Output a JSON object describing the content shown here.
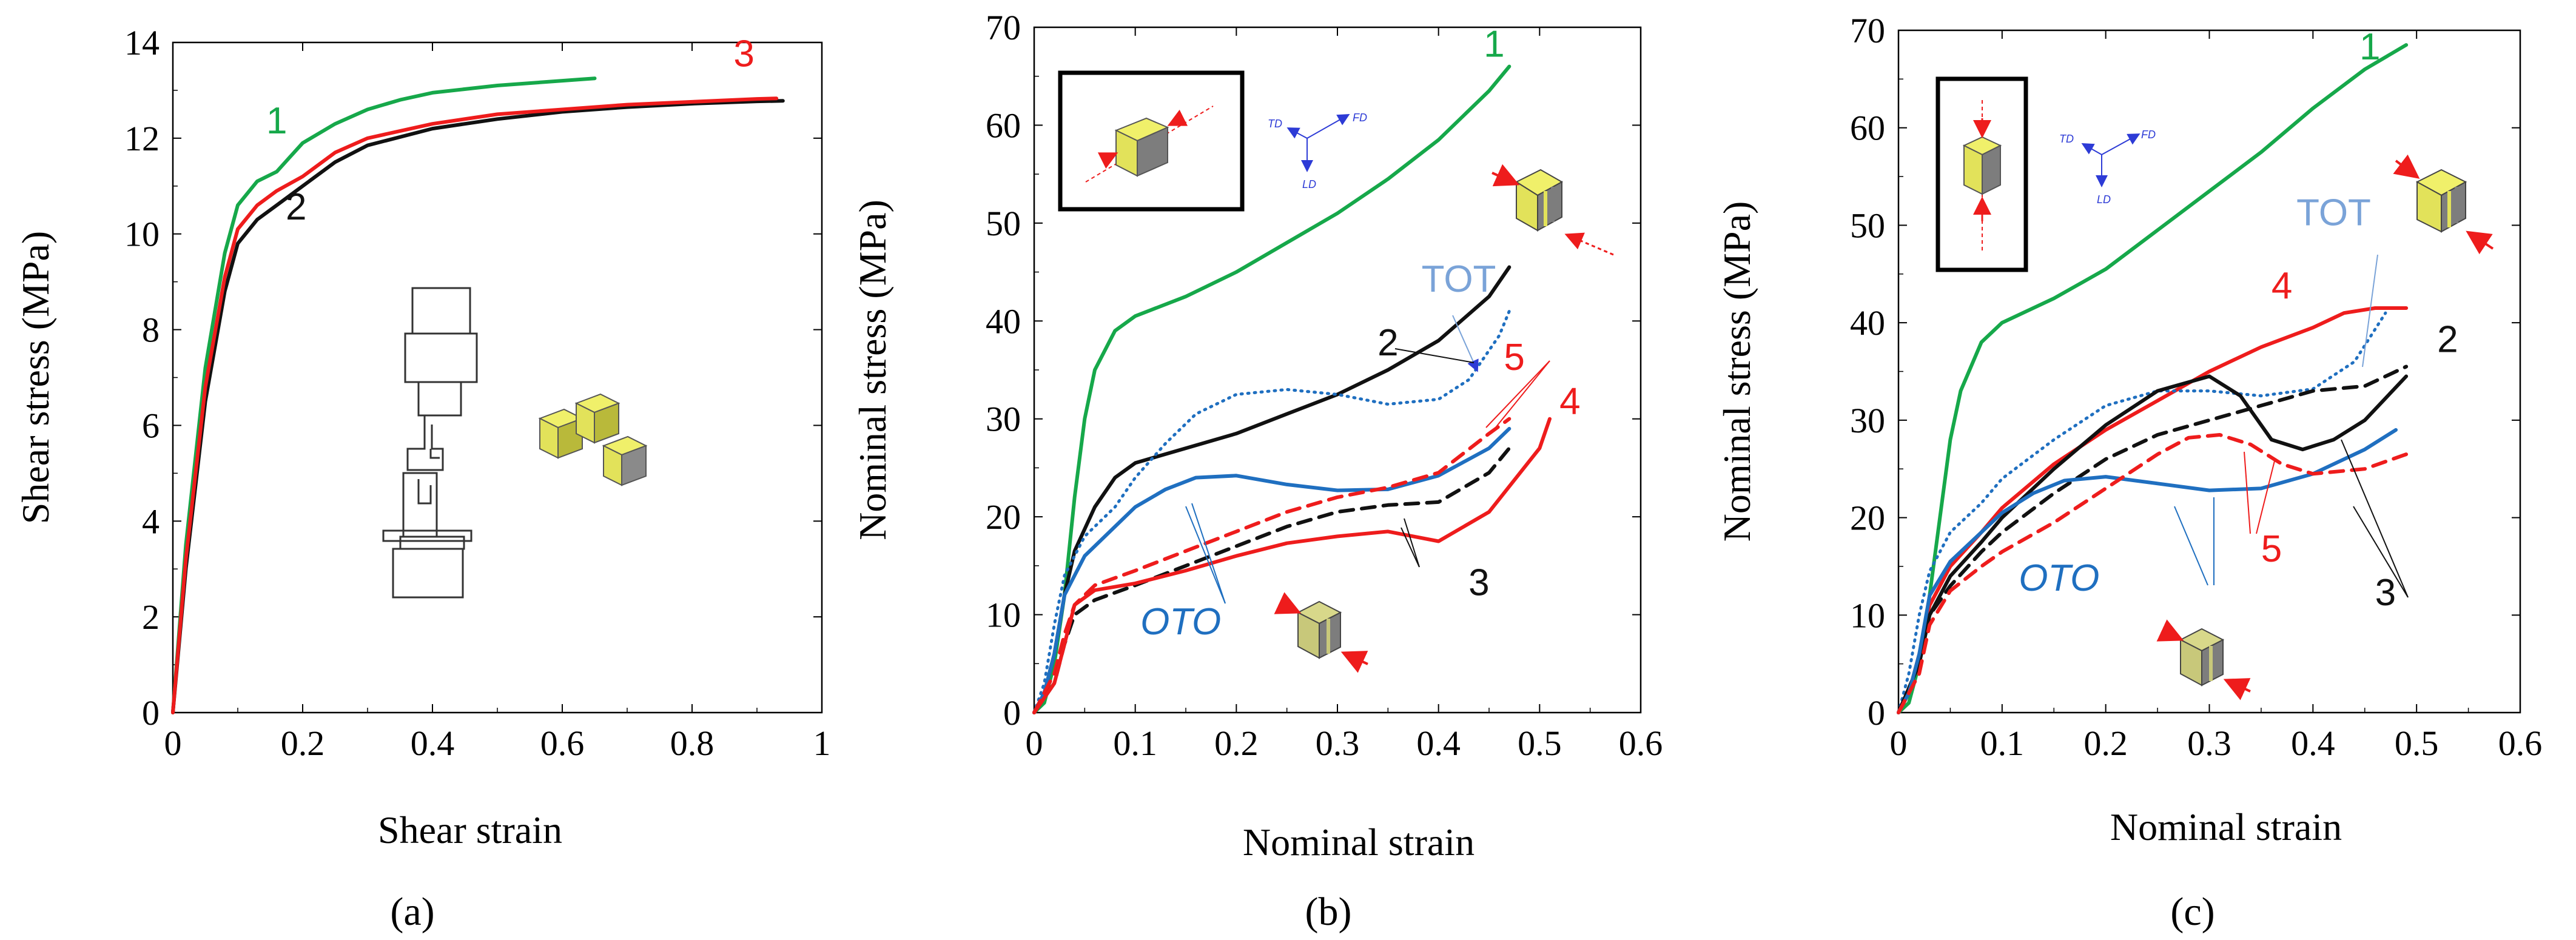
{
  "colors": {
    "green": "#16a84a",
    "black": "#111111",
    "red": "#ee1c1c",
    "blue": "#1f6fc0",
    "lightblue": "#7aa3d8",
    "cube_yellow": "#e2e25a",
    "cube_yellow_dark": "#b9b93a",
    "cube_gray": "#7d7d7d"
  },
  "chart_data": [
    {
      "type": "line",
      "panel": "a",
      "caption": "(a)",
      "xlabel": "Shear strain",
      "ylabel": "Shear stress (MPa)",
      "xlim": [
        0,
        1
      ],
      "ylim": [
        0,
        14
      ],
      "xticks": [
        0,
        0.2,
        0.4,
        0.6,
        0.8,
        1
      ],
      "xtick_labels": [
        "0",
        "0.2",
        "0.4",
        "0.6",
        "0.8",
        "1"
      ],
      "yticks": [
        0,
        2,
        4,
        6,
        8,
        10,
        12,
        14
      ],
      "ytick_labels": [
        "0",
        "2",
        "4",
        "6",
        "8",
        "10",
        "12",
        "14"
      ],
      "series": [
        {
          "name": "1",
          "color": "green",
          "dash": "solid",
          "x": [
            0,
            0.02,
            0.05,
            0.08,
            0.1,
            0.13,
            0.16,
            0.18,
            0.2,
            0.25,
            0.3,
            0.35,
            0.4,
            0.5,
            0.6,
            0.65
          ],
          "y": [
            0,
            3.5,
            7.2,
            9.6,
            10.6,
            11.1,
            11.3,
            11.6,
            11.9,
            12.3,
            12.6,
            12.8,
            12.95,
            13.1,
            13.2,
            13.25
          ]
        },
        {
          "name": "2",
          "color": "black",
          "dash": "solid",
          "x": [
            0,
            0.02,
            0.05,
            0.08,
            0.1,
            0.13,
            0.16,
            0.2,
            0.25,
            0.3,
            0.4,
            0.5,
            0.6,
            0.7,
            0.8,
            0.9,
            0.94
          ],
          "y": [
            0,
            3.0,
            6.5,
            8.8,
            9.8,
            10.3,
            10.6,
            11.0,
            11.5,
            11.85,
            12.2,
            12.4,
            12.55,
            12.65,
            12.72,
            12.77,
            12.78
          ]
        },
        {
          "name": "3",
          "color": "red",
          "dash": "solid",
          "x": [
            0,
            0.02,
            0.05,
            0.08,
            0.1,
            0.13,
            0.16,
            0.2,
            0.25,
            0.3,
            0.4,
            0.5,
            0.6,
            0.7,
            0.8,
            0.9,
            0.93
          ],
          "y": [
            0,
            3.2,
            6.8,
            9.1,
            10.1,
            10.6,
            10.9,
            11.2,
            11.7,
            12.0,
            12.3,
            12.5,
            12.6,
            12.7,
            12.76,
            12.82,
            12.83
          ]
        }
      ],
      "labels": [
        {
          "text": "1",
          "color": "green",
          "x": 0.16,
          "y": 12.1
        },
        {
          "text": "2",
          "color": "black",
          "x": 0.19,
          "y": 10.3
        },
        {
          "text": "3",
          "color": "red",
          "x": 0.88,
          "y": 13.5
        }
      ]
    },
    {
      "type": "line",
      "panel": "b",
      "caption": "(b)",
      "xlabel": "Nominal strain",
      "ylabel": "Nominal stress (MPa)",
      "xlim": [
        0,
        0.6
      ],
      "ylim": [
        0,
        70
      ],
      "xticks": [
        0,
        0.1,
        0.2,
        0.3,
        0.4,
        0.5,
        0.6
      ],
      "xtick_labels": [
        "0",
        "0.1",
        "0.2",
        "0.3",
        "0.4",
        "0.5",
        "0.6"
      ],
      "yticks": [
        0,
        10,
        20,
        30,
        40,
        50,
        60,
        70
      ],
      "ytick_labels": [
        "0",
        "10",
        "20",
        "30",
        "40",
        "50",
        "60",
        "70"
      ],
      "series": [
        {
          "name": "1",
          "color": "green",
          "dash": "solid",
          "x": [
            0,
            0.01,
            0.02,
            0.03,
            0.04,
            0.05,
            0.06,
            0.08,
            0.1,
            0.15,
            0.2,
            0.25,
            0.3,
            0.35,
            0.4,
            0.45,
            0.47
          ],
          "y": [
            0,
            1,
            5,
            12,
            22,
            30,
            35,
            39,
            40.5,
            42.5,
            45,
            48,
            51,
            54.5,
            58.5,
            63.5,
            66
          ]
        },
        {
          "name": "2",
          "color": "black",
          "dash": "solid",
          "x": [
            0,
            0.01,
            0.02,
            0.03,
            0.04,
            0.06,
            0.08,
            0.1,
            0.15,
            0.2,
            0.25,
            0.3,
            0.35,
            0.4,
            0.45,
            0.47
          ],
          "y": [
            0,
            2,
            6,
            12,
            16.5,
            21,
            24,
            25.5,
            27,
            28.5,
            30.5,
            32.5,
            35,
            38,
            42.5,
            45.5
          ]
        },
        {
          "name": "TOT",
          "color": "blue",
          "dash": "dotted",
          "x": [
            0,
            0.01,
            0.02,
            0.03,
            0.05,
            0.08,
            0.1,
            0.13,
            0.16,
            0.2,
            0.25,
            0.3,
            0.35,
            0.4,
            0.43,
            0.46,
            0.47
          ],
          "y": [
            0,
            3,
            9,
            14,
            18,
            21,
            24,
            27.5,
            30.5,
            32.5,
            33,
            32.5,
            31.5,
            32,
            34,
            38.5,
            41
          ]
        },
        {
          "name": "OTO",
          "color": "blue",
          "dash": "solid",
          "x": [
            0,
            0.01,
            0.02,
            0.03,
            0.05,
            0.08,
            0.1,
            0.13,
            0.16,
            0.2,
            0.25,
            0.3,
            0.35,
            0.4,
            0.45,
            0.47
          ],
          "y": [
            0,
            2,
            6,
            12,
            16,
            19,
            21,
            22.8,
            24,
            24.2,
            23.3,
            22.7,
            22.8,
            24.2,
            27,
            29
          ]
        },
        {
          "name": "5",
          "color": "red",
          "dash": "dashed",
          "x": [
            0,
            0.02,
            0.03,
            0.04,
            0.06,
            0.1,
            0.15,
            0.2,
            0.25,
            0.3,
            0.35,
            0.4,
            0.45,
            0.47
          ],
          "y": [
            0,
            4,
            8,
            11,
            13,
            14.5,
            16.5,
            18.5,
            20.5,
            22,
            23,
            24.5,
            28.5,
            30
          ]
        },
        {
          "name": "3",
          "color": "black",
          "dash": "dashed",
          "x": [
            0,
            0.02,
            0.03,
            0.04,
            0.06,
            0.1,
            0.15,
            0.2,
            0.25,
            0.3,
            0.35,
            0.4,
            0.45,
            0.47
          ],
          "y": [
            0,
            3,
            7,
            10,
            11.5,
            13,
            15,
            17,
            19,
            20.5,
            21.2,
            21.5,
            24.5,
            27
          ]
        },
        {
          "name": "4",
          "color": "red",
          "dash": "solid",
          "x": [
            0,
            0.02,
            0.03,
            0.04,
            0.06,
            0.1,
            0.15,
            0.2,
            0.25,
            0.3,
            0.35,
            0.4,
            0.45,
            0.5,
            0.51
          ],
          "y": [
            0,
            3,
            7,
            11,
            12.5,
            13.2,
            14.5,
            16,
            17.3,
            18,
            18.5,
            17.5,
            20.5,
            27,
            30
          ]
        }
      ],
      "labels": [
        {
          "text": "1",
          "color": "green",
          "x": 0.455,
          "y": 67
        },
        {
          "text": "2",
          "color": "black",
          "x": 0.35,
          "y": 36.5
        },
        {
          "text": "TOT",
          "color": "lightblue",
          "x": 0.42,
          "y": 43
        },
        {
          "text": "5",
          "color": "red",
          "x": 0.475,
          "y": 35
        },
        {
          "text": "4",
          "color": "red",
          "x": 0.53,
          "y": 30.5
        },
        {
          "text": "3",
          "color": "black",
          "x": 0.44,
          "y": 12
        },
        {
          "text": "OTO",
          "color": "blue",
          "x": 0.145,
          "y": 8
        }
      ],
      "inset": {
        "triad_labels": [
          "TD",
          "FD",
          "LD"
        ]
      }
    },
    {
      "type": "line",
      "panel": "c",
      "caption": "(c)",
      "xlabel": "Nominal strain",
      "ylabel": "Nominal stress (MPa)",
      "xlim": [
        0,
        0.6
      ],
      "ylim": [
        0,
        70
      ],
      "xticks": [
        0,
        0.1,
        0.2,
        0.3,
        0.4,
        0.5,
        0.6
      ],
      "xtick_labels": [
        "0",
        "0.1",
        "0.2",
        "0.3",
        "0.4",
        "0.5",
        "0.6"
      ],
      "yticks": [
        0,
        10,
        20,
        30,
        40,
        50,
        60,
        70
      ],
      "ytick_labels": [
        "0",
        "10",
        "20",
        "30",
        "40",
        "50",
        "60",
        "70"
      ],
      "series": [
        {
          "name": "1",
          "color": "green",
          "dash": "solid",
          "x": [
            0,
            0.01,
            0.02,
            0.03,
            0.04,
            0.05,
            0.06,
            0.08,
            0.1,
            0.15,
            0.2,
            0.25,
            0.3,
            0.35,
            0.4,
            0.45,
            0.49
          ],
          "y": [
            0,
            1,
            5,
            12,
            20,
            28,
            33,
            38,
            40,
            42.5,
            45.5,
            49.5,
            53.5,
            57.5,
            62,
            66,
            68.5
          ]
        },
        {
          "name": "4",
          "color": "red",
          "dash": "solid",
          "x": [
            0,
            0.01,
            0.02,
            0.03,
            0.05,
            0.08,
            0.1,
            0.15,
            0.2,
            0.25,
            0.3,
            0.35,
            0.4,
            0.43,
            0.46,
            0.49
          ],
          "y": [
            0,
            2,
            6,
            11,
            15,
            18.5,
            21,
            25.5,
            29,
            32,
            35,
            37.5,
            39.5,
            41,
            41.5,
            41.5
          ]
        },
        {
          "name": "TOT",
          "color": "blue",
          "dash": "dotted",
          "x": [
            0,
            0.01,
            0.02,
            0.03,
            0.05,
            0.08,
            0.1,
            0.15,
            0.2,
            0.25,
            0.3,
            0.35,
            0.4,
            0.44,
            0.47
          ],
          "y": [
            0,
            4,
            10,
            14.5,
            18.5,
            21.5,
            24,
            28,
            31.5,
            33,
            33,
            32.5,
            33.2,
            36,
            41
          ]
        },
        {
          "name": "2",
          "color": "black",
          "dash": "dashed",
          "x": [
            0,
            0.02,
            0.03,
            0.05,
            0.08,
            0.1,
            0.15,
            0.2,
            0.25,
            0.3,
            0.35,
            0.4,
            0.45,
            0.49
          ],
          "y": [
            0,
            5,
            10,
            13,
            16.5,
            18.5,
            22.5,
            26,
            28.5,
            30,
            31.5,
            33,
            33.5,
            35.5
          ]
        },
        {
          "name": "3",
          "color": "black",
          "dash": "solid",
          "x": [
            0,
            0.02,
            0.03,
            0.05,
            0.08,
            0.1,
            0.15,
            0.2,
            0.25,
            0.3,
            0.33,
            0.36,
            0.39,
            0.42,
            0.45,
            0.49
          ],
          "y": [
            0,
            5,
            10,
            14,
            17.5,
            20,
            25,
            29.5,
            33,
            34.5,
            32.5,
            28,
            27,
            28,
            30,
            34.5
          ]
        },
        {
          "name": "OTO",
          "color": "blue",
          "dash": "solid",
          "x": [
            0,
            0.01,
            0.02,
            0.03,
            0.05,
            0.08,
            0.1,
            0.13,
            0.16,
            0.2,
            0.25,
            0.3,
            0.35,
            0.4,
            0.45,
            0.48
          ],
          "y": [
            0,
            2,
            6,
            12,
            15.5,
            18.5,
            20.5,
            22.5,
            23.8,
            24.2,
            23.5,
            22.8,
            23,
            24.5,
            27,
            29
          ]
        },
        {
          "name": "5",
          "color": "red",
          "dash": "dashed",
          "x": [
            0,
            0.02,
            0.03,
            0.05,
            0.08,
            0.1,
            0.15,
            0.2,
            0.25,
            0.28,
            0.31,
            0.34,
            0.37,
            0.4,
            0.45,
            0.49
          ],
          "y": [
            0,
            4,
            9,
            12.5,
            15,
            16.5,
            19.5,
            23,
            26.5,
            28.2,
            28.5,
            27.5,
            25.5,
            24.5,
            25,
            26.5
          ]
        }
      ],
      "labels": [
        {
          "text": "1",
          "color": "green",
          "x": 0.455,
          "y": 67
        },
        {
          "text": "TOT",
          "color": "lightblue",
          "x": 0.42,
          "y": 50
        },
        {
          "text": "4",
          "color": "red",
          "x": 0.37,
          "y": 42.5
        },
        {
          "text": "2",
          "color": "black",
          "x": 0.53,
          "y": 37
        },
        {
          "text": "5",
          "color": "red",
          "x": 0.36,
          "y": 15.5
        },
        {
          "text": "3",
          "color": "black",
          "x": 0.47,
          "y": 11
        },
        {
          "text": "OTO",
          "color": "blue",
          "x": 0.155,
          "y": 12.5
        }
      ],
      "inset": {
        "triad_labels": [
          "TD",
          "FD",
          "LD"
        ]
      }
    }
  ]
}
